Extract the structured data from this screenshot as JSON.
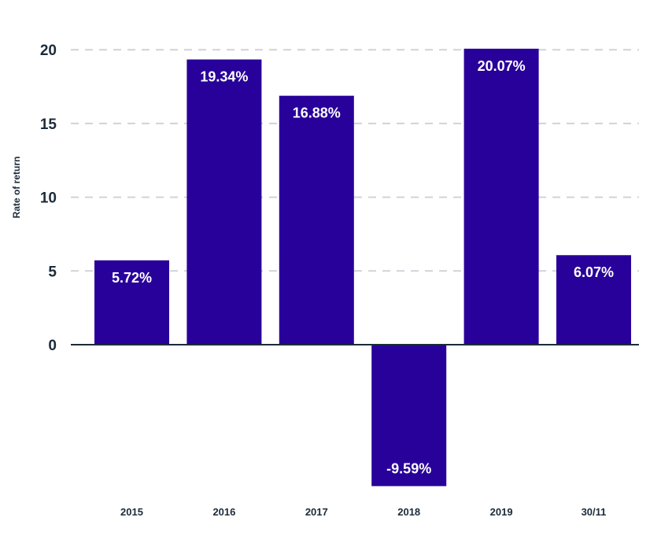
{
  "chart_data": {
    "type": "bar",
    "title": "",
    "xlabel": "",
    "ylabel": "Rate of return",
    "categories": [
      "2015",
      "2016",
      "2017",
      "2018",
      "2019",
      "30/11"
    ],
    "values": [
      5.72,
      19.34,
      16.88,
      -9.59,
      20.07,
      6.07
    ],
    "data_labels": [
      "5.72%",
      "19.34%",
      "16.88%",
      "-9.59%",
      "20.07%",
      "6.07%"
    ],
    "yticks": [
      0,
      5,
      10,
      15,
      20
    ],
    "ytick_labels": [
      "0",
      "5",
      "10",
      "15",
      "20"
    ],
    "ylim": [
      -10,
      20.5
    ],
    "grid": true,
    "legend": "none",
    "colors": {
      "bar": "#28009a",
      "grid": "#cfd3d8",
      "axis": "#1c2b3a",
      "text": "#1c2b3a",
      "label": "#ffffff"
    }
  }
}
